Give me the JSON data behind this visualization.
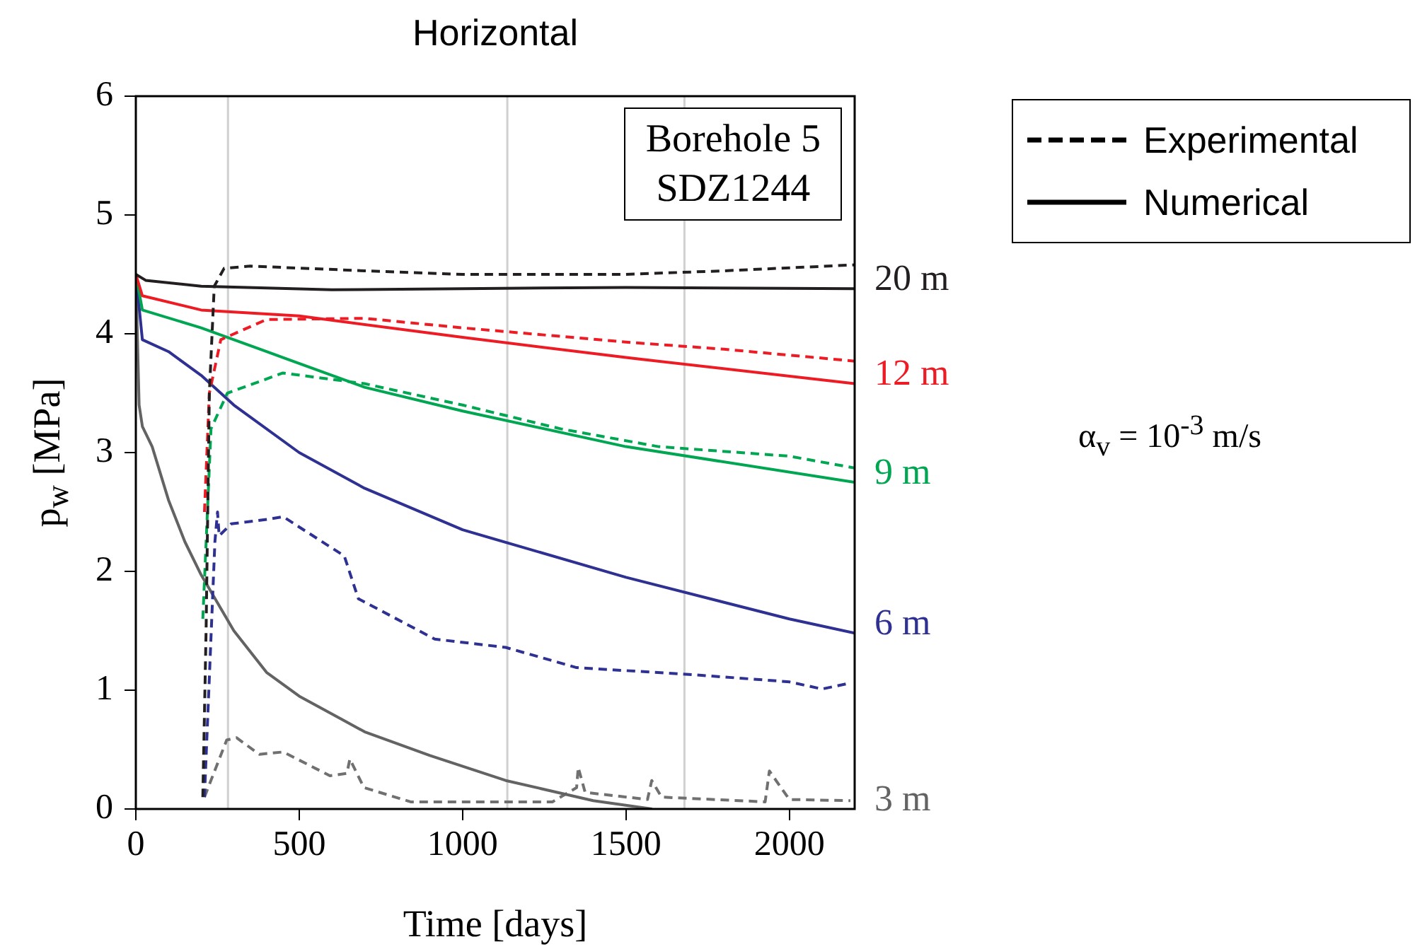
{
  "chart_data": {
    "type": "line",
    "title": "Horizontal",
    "xlabel": "Time [days]",
    "ylabel": "p$_{w}$ [MPa]",
    "xlim": [
      0,
      2200
    ],
    "xticks": [
      0,
      500,
      1000,
      1500,
      2000
    ],
    "ylim": [
      0,
      6
    ],
    "yticks": [
      0,
      1,
      2,
      3,
      4,
      5,
      6
    ],
    "legend": "right",
    "marker": "none",
    "annotations": [
      "Borehole 5\nSDZ1244",
      "Experimental",
      "Numerical",
      "α$_{v}$ = 10$^{-3}$ m/s"
    ],
    "ref_lines": [
      {
        "axis": "x",
        "value": 282,
        "color": "#d0d0d0"
      },
      {
        "axis": "x",
        "value": 1137,
        "color": "#d0d0d0"
      },
      {
        "axis": "x",
        "value": 1679,
        "color": "#d0d0d0"
      }
    ],
    "series": [
      {
        "name": "20 m",
        "color": "#231f20",
        "line_style": "solid",
        "x": [
          0,
          30,
          200,
          600,
          1000,
          1500,
          2200
        ],
        "values": [
          4.5,
          4.45,
          4.4,
          4.37,
          4.38,
          4.39,
          4.38
        ]
      },
      {
        "color": "#231f20",
        "line_style": "dashed",
        "x": [
          205,
          215,
          225,
          240,
          270,
          350,
          700,
          1000,
          1500,
          1800,
          2200
        ],
        "values": [
          0.1,
          1.5,
          3.5,
          4.4,
          4.55,
          4.57,
          4.53,
          4.5,
          4.5,
          4.53,
          4.58
        ]
      },
      {
        "name": "12 m",
        "color": "#ed1c24",
        "line_style": "solid",
        "x": [
          0,
          20,
          200,
          500,
          1000,
          1500,
          2200
        ],
        "values": [
          4.5,
          4.32,
          4.2,
          4.15,
          3.97,
          3.8,
          3.58
        ]
      },
      {
        "color": "#ed1c24",
        "line_style": "dashed",
        "x": [
          210,
          225,
          260,
          400,
          700,
          1000,
          1500,
          1800,
          2200
        ],
        "values": [
          2.5,
          3.5,
          3.95,
          4.12,
          4.13,
          4.05,
          3.93,
          3.87,
          3.77
        ]
      },
      {
        "name": "9 m",
        "color": "#00a651",
        "line_style": "solid",
        "x": [
          0,
          20,
          200,
          400,
          700,
          1000,
          1500,
          2200
        ],
        "values": [
          4.5,
          4.2,
          4.05,
          3.85,
          3.55,
          3.35,
          3.05,
          2.75
        ]
      },
      {
        "color": "#00a651",
        "line_style": "dashed",
        "x": [
          205,
          230,
          280,
          450,
          700,
          1000,
          1300,
          1600,
          2000,
          2200
        ],
        "values": [
          1.6,
          3.2,
          3.5,
          3.67,
          3.58,
          3.4,
          3.2,
          3.05,
          2.97,
          2.87
        ]
      },
      {
        "name": "6 m",
        "color": "#2e3192",
        "line_style": "solid",
        "x": [
          0,
          20,
          100,
          200,
          300,
          500,
          700,
          1000,
          1500,
          2000,
          2200
        ],
        "values": [
          4.5,
          3.95,
          3.85,
          3.65,
          3.4,
          3.0,
          2.7,
          2.35,
          1.95,
          1.6,
          1.48
        ]
      },
      {
        "color": "#2e3192",
        "line_style": "dashed",
        "x": [
          210,
          242,
          250,
          255,
          292,
          408,
          451,
          638,
          681,
          915,
          1132,
          1349,
          1709,
          2000,
          2100,
          2187
        ],
        "values": [
          0.1,
          2.25,
          2.5,
          2.3,
          2.4,
          2.44,
          2.46,
          2.13,
          1.77,
          1.43,
          1.36,
          1.19,
          1.13,
          1.07,
          1.01,
          1.06
        ]
      },
      {
        "name": "3 m",
        "color": "#636363",
        "line_style": "solid",
        "x": [
          0,
          10,
          20,
          50,
          100,
          150,
          200,
          300,
          400,
          500,
          700,
          900,
          1132,
          1400,
          1580
        ],
        "values": [
          4.5,
          3.4,
          3.22,
          3.05,
          2.6,
          2.25,
          1.97,
          1.5,
          1.15,
          0.95,
          0.65,
          0.45,
          0.24,
          0.07,
          0
        ]
      },
      {
        "color": "#707070",
        "line_style": "dashed",
        "x": [
          210,
          278,
          308,
          378,
          451,
          594,
          646,
          655,
          698,
          841,
          1275,
          1349,
          1354,
          1375,
          1566,
          1579,
          1609,
          1926,
          1939,
          2000,
          2187
        ],
        "values": [
          0.1,
          0.58,
          0.6,
          0.46,
          0.48,
          0.28,
          0.3,
          0.42,
          0.18,
          0.06,
          0.06,
          0.18,
          0.35,
          0.14,
          0.08,
          0.24,
          0.1,
          0.06,
          0.32,
          0.08,
          0.07
        ]
      }
    ]
  }
}
